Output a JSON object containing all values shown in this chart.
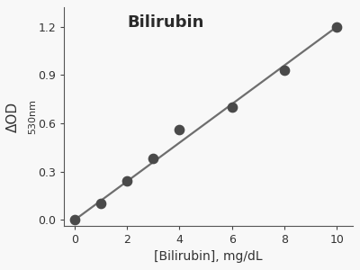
{
  "x_data": [
    0,
    1,
    2,
    3,
    4,
    6,
    8,
    10
  ],
  "y_data": [
    0.0,
    0.1,
    0.24,
    0.38,
    0.56,
    0.7,
    0.93,
    1.2
  ],
  "line_x": [
    0,
    10
  ],
  "line_y": [
    0.0,
    1.2
  ],
  "xlabel": "[Bilirubin], mg/dL",
  "ylabel_main": "ΔOD",
  "ylabel_sub": "530nm",
  "annotation": "Bilirubin",
  "xlim": [
    -0.4,
    10.6
  ],
  "ylim": [
    -0.04,
    1.32
  ],
  "xticks": [
    0,
    2,
    4,
    6,
    8,
    10
  ],
  "yticks": [
    0.0,
    0.3,
    0.6,
    0.9,
    1.2
  ],
  "dot_color": "#4a4a4a",
  "line_color": "#6e6e6e",
  "background_color": "#f8f8f8",
  "dot_size": 55,
  "line_width": 1.6,
  "font_size_label": 10,
  "font_size_annotation": 13,
  "font_size_ticks": 9,
  "font_size_sub": 8
}
